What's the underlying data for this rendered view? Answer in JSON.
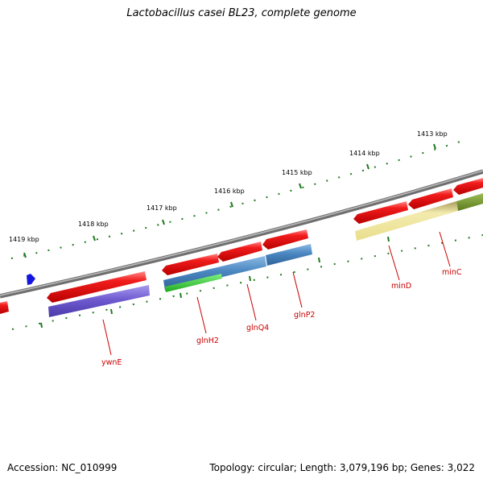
{
  "title": "Lactobacillus casei BL23, complete genome",
  "footer": {
    "accession": "Accession: NC_010999",
    "stats": "Topology: circular; Length: 3,079,196 bp; Genes: 3,022"
  },
  "colors": {
    "backbone": "#7a7a7a",
    "tick": "#1f7a1f",
    "cds": "#ef1414",
    "label": "#cc0000",
    "purple": "#6f5bd0",
    "steelblue": "#4a86c0",
    "green": "#33c233",
    "khaki": "#eee59a",
    "olive": "#6e8e2a",
    "marker": "#1515e0"
  },
  "kbp_labels": [
    "1419 kbp",
    "1418 kbp",
    "1417 kbp",
    "1416 kbp",
    "1415 kbp",
    "1414 kbp",
    "1413 kbp"
  ],
  "gene_labels": [
    "ywnE",
    "glnH2",
    "glnQ4",
    "glnP2",
    "minD",
    "minC"
  ]
}
